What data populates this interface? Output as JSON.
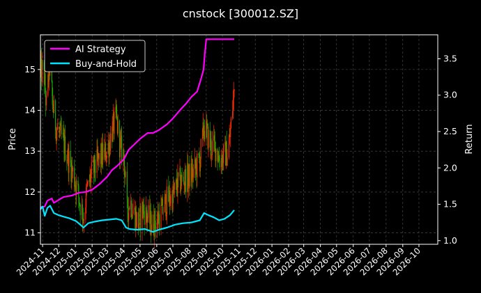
{
  "chart_data": {
    "type": "line",
    "title": "cnstock [300012.SZ]",
    "ylabel_left": "Price",
    "ylabel_right": "Return",
    "grid": true,
    "legend_position": "top-left",
    "background": "#000000",
    "left_axis": {
      "ylim": [
        10.72,
        15.85
      ],
      "ticks": [
        11,
        12,
        13,
        14,
        15
      ]
    },
    "right_axis": {
      "ylim": [
        0.95,
        3.83
      ],
      "ticks": [
        1.0,
        1.5,
        2.0,
        2.5,
        3.0,
        3.5
      ]
    },
    "x_ticks": [
      "2024-11",
      "2024-12",
      "2025-01",
      "2025-02",
      "2025-03",
      "2025-04",
      "2025-05",
      "2025-06",
      "2025-07",
      "2025-08",
      "2025-09",
      "2025-10",
      "2025-11",
      "2025-12",
      "2026-01",
      "2026-02",
      "2026-03",
      "2026-04",
      "2026-05",
      "2026-06",
      "2026-07",
      "2026-08",
      "2026-09",
      "2026-10"
    ],
    "x_range": [
      "2024-10-28",
      "2026-11-05"
    ],
    "candle_up_color": "#ff2a00",
    "candle_down_color": "#1faa00",
    "price_keypoints": [
      [
        "2024-10-28",
        14.9
      ],
      [
        "2024-11-03",
        15.0
      ],
      [
        "2024-11-08",
        14.1
      ],
      [
        "2024-11-14",
        15.2
      ],
      [
        "2024-11-20",
        14.1
      ],
      [
        "2024-11-26",
        13.6
      ],
      [
        "2024-12-03",
        13.4
      ],
      [
        "2024-12-10",
        13.2
      ],
      [
        "2024-12-17",
        12.9
      ],
      [
        "2024-12-24",
        12.6
      ],
      [
        "2025-01-02",
        12.2
      ],
      [
        "2025-01-10",
        11.7
      ],
      [
        "2025-01-16",
        11.4
      ],
      [
        "2025-01-22",
        12.0
      ],
      [
        "2025-01-30",
        12.4
      ],
      [
        "2025-02-10",
        12.7
      ],
      [
        "2025-02-20",
        12.9
      ],
      [
        "2025-03-01",
        13.0
      ],
      [
        "2025-03-10",
        13.5
      ],
      [
        "2025-03-18",
        13.8
      ],
      [
        "2025-03-25",
        13.1
      ],
      [
        "2025-04-01",
        12.9
      ],
      [
        "2025-04-07",
        11.5
      ],
      [
        "2025-04-12",
        11.8
      ],
      [
        "2025-04-20",
        11.5
      ],
      [
        "2025-04-28",
        11.2
      ],
      [
        "2025-05-06",
        11.6
      ],
      [
        "2025-05-14",
        11.4
      ],
      [
        "2025-05-22",
        11.2
      ],
      [
        "2025-06-01",
        11.3
      ],
      [
        "2025-06-10",
        11.5
      ],
      [
        "2025-06-20",
        11.8
      ],
      [
        "2025-07-01",
        11.9
      ],
      [
        "2025-07-10",
        12.2
      ],
      [
        "2025-07-20",
        12.3
      ],
      [
        "2025-08-01",
        12.4
      ],
      [
        "2025-08-10",
        12.5
      ],
      [
        "2025-08-20",
        12.8
      ],
      [
        "2025-08-28",
        13.6
      ],
      [
        "2025-09-03",
        13.4
      ],
      [
        "2025-09-10",
        13.1
      ],
      [
        "2025-09-18",
        13.1
      ],
      [
        "2025-09-26",
        12.8
      ],
      [
        "2025-10-05",
        12.9
      ],
      [
        "2025-10-12",
        13.0
      ],
      [
        "2025-10-16",
        13.5
      ],
      [
        "2025-10-20",
        14.1
      ],
      [
        "2025-10-23",
        14.5
      ]
    ],
    "series": [
      {
        "name": "AI Strategy",
        "color": "#ff00ff",
        "axis": "right",
        "points": [
          [
            "2024-10-28",
            1.46
          ],
          [
            "2024-11-05",
            1.47
          ],
          [
            "2024-11-10",
            1.55
          ],
          [
            "2024-11-18",
            1.58
          ],
          [
            "2024-11-22",
            1.52
          ],
          [
            "2024-12-01",
            1.56
          ],
          [
            "2024-12-10",
            1.6
          ],
          [
            "2024-12-25",
            1.62
          ],
          [
            "2025-01-08",
            1.66
          ],
          [
            "2025-01-20",
            1.67
          ],
          [
            "2025-02-01",
            1.7
          ],
          [
            "2025-02-15",
            1.78
          ],
          [
            "2025-03-01",
            1.88
          ],
          [
            "2025-03-10",
            1.97
          ],
          [
            "2025-03-20",
            2.03
          ],
          [
            "2025-04-01",
            2.12
          ],
          [
            "2025-04-10",
            2.25
          ],
          [
            "2025-04-20",
            2.32
          ],
          [
            "2025-05-01",
            2.4
          ],
          [
            "2025-05-15",
            2.48
          ],
          [
            "2025-05-25",
            2.48
          ],
          [
            "2025-06-05",
            2.52
          ],
          [
            "2025-06-20",
            2.6
          ],
          [
            "2025-07-01",
            2.68
          ],
          [
            "2025-07-15",
            2.8
          ],
          [
            "2025-07-25",
            2.88
          ],
          [
            "2025-08-05",
            2.98
          ],
          [
            "2025-08-15",
            3.05
          ],
          [
            "2025-08-22",
            3.22
          ],
          [
            "2025-08-27",
            3.35
          ],
          [
            "2025-08-29",
            3.55
          ],
          [
            "2025-09-01",
            3.77
          ],
          [
            "2025-10-23",
            3.77
          ]
        ]
      },
      {
        "name": "Buy-and-Hold",
        "color": "#00e5ff",
        "axis": "right",
        "points": [
          [
            "2024-10-28",
            1.43
          ],
          [
            "2024-11-01",
            1.47
          ],
          [
            "2024-11-05",
            1.34
          ],
          [
            "2024-11-10",
            1.45
          ],
          [
            "2024-11-15",
            1.48
          ],
          [
            "2024-11-22",
            1.38
          ],
          [
            "2024-12-01",
            1.35
          ],
          [
            "2024-12-10",
            1.33
          ],
          [
            "2024-12-20",
            1.31
          ],
          [
            "2025-01-02",
            1.27
          ],
          [
            "2025-01-10",
            1.22
          ],
          [
            "2025-01-16",
            1.18
          ],
          [
            "2025-01-25",
            1.24
          ],
          [
            "2025-02-05",
            1.26
          ],
          [
            "2025-02-20",
            1.28
          ],
          [
            "2025-03-05",
            1.29
          ],
          [
            "2025-03-18",
            1.3
          ],
          [
            "2025-03-28",
            1.28
          ],
          [
            "2025-04-05",
            1.18
          ],
          [
            "2025-04-12",
            1.16
          ],
          [
            "2025-04-25",
            1.15
          ],
          [
            "2025-05-10",
            1.16
          ],
          [
            "2025-05-25",
            1.12
          ],
          [
            "2025-06-05",
            1.15
          ],
          [
            "2025-06-20",
            1.18
          ],
          [
            "2025-07-05",
            1.22
          ],
          [
            "2025-07-20",
            1.24
          ],
          [
            "2025-08-05",
            1.25
          ],
          [
            "2025-08-20",
            1.28
          ],
          [
            "2025-08-28",
            1.38
          ],
          [
            "2025-09-05",
            1.35
          ],
          [
            "2025-09-15",
            1.32
          ],
          [
            "2025-09-25",
            1.28
          ],
          [
            "2025-10-05",
            1.3
          ],
          [
            "2025-10-15",
            1.35
          ],
          [
            "2025-10-23",
            1.42
          ]
        ]
      }
    ]
  }
}
